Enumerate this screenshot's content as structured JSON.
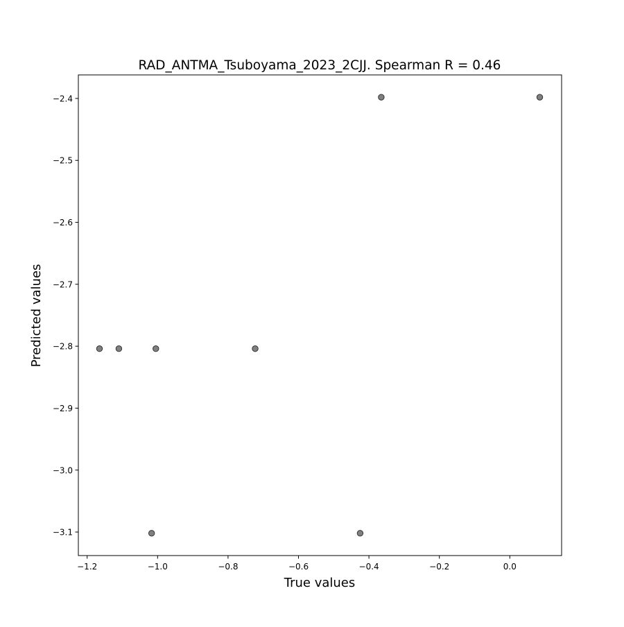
{
  "chart_data": {
    "type": "scatter",
    "title": "RAD_ANTMA_Tsuboyama_2023_2CJJ. Spearman R = 0.46",
    "xlabel": "True values",
    "ylabel": "Predicted values",
    "xlim": [
      -1.225,
      0.147
    ],
    "ylim": [
      -3.138,
      -2.362
    ],
    "xticks": [
      -1.2,
      -1.0,
      -0.8,
      -0.6,
      -0.4,
      -0.2,
      0.0
    ],
    "yticks": [
      -2.4,
      -2.5,
      -2.6,
      -2.7,
      -2.8,
      -2.9,
      -3.0,
      -3.1
    ],
    "xtick_labels": [
      "−1.2",
      "−1.0",
      "−0.8",
      "−0.6",
      "−0.4",
      "−0.2",
      "0.0"
    ],
    "ytick_labels": [
      "−2.4",
      "−2.5",
      "−2.6",
      "−2.7",
      "−2.8",
      "−2.9",
      "−3.0",
      "−3.1"
    ],
    "grid": false,
    "marker_color": "#555555",
    "points": [
      {
        "x": -1.165,
        "y": -2.804
      },
      {
        "x": -1.11,
        "y": -2.804
      },
      {
        "x": -1.005,
        "y": -2.804
      },
      {
        "x": -0.723,
        "y": -2.804
      },
      {
        "x": -1.017,
        "y": -3.102
      },
      {
        "x": -0.425,
        "y": -3.102
      },
      {
        "x": -0.365,
        "y": -2.398
      },
      {
        "x": 0.085,
        "y": -2.398
      }
    ]
  }
}
